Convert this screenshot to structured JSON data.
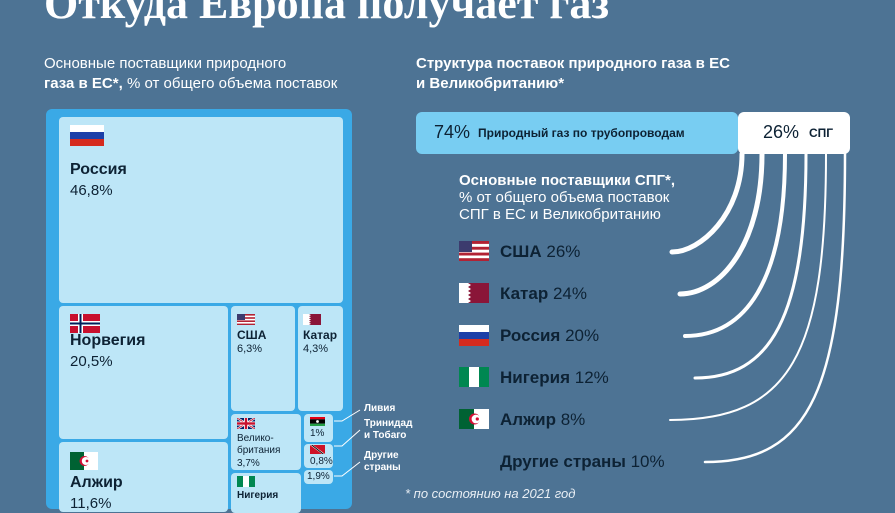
{
  "title": "Откуда Европа получает газ",
  "left_subtitle": {
    "line1": "Основные поставщики природного",
    "line2_bold": "газа в ЕС*,",
    "line2_rest": " % от общего объема поставок"
  },
  "right_subtitle": {
    "line1": "Структура поставок природного газа в ЕС",
    "line2": "и Великобританию*"
  },
  "lng_subtitle": {
    "line1": "Основные поставщики СПГ*,",
    "line2": "% от общего объема поставок",
    "line3": "СПГ в ЕС и Великобританию"
  },
  "footnote": "* по состоянию на 2021 год",
  "chart_data": [
    {
      "type": "treemap",
      "title": "Основные поставщики природного газа в ЕС*, % от общего объема поставок",
      "items": [
        {
          "name": "Россия",
          "value": 46.8,
          "label": "46,8%"
        },
        {
          "name": "Норвегия",
          "value": 20.5,
          "label": "20,5%"
        },
        {
          "name": "Алжир",
          "value": 11.6,
          "label": "11,6%"
        },
        {
          "name": "США",
          "value": 6.3,
          "label": "6,3%"
        },
        {
          "name": "Катар",
          "value": 4.3,
          "label": "4,3%"
        },
        {
          "name": "Велико-британия",
          "label_line1": "Велико-",
          "label_line2": "британия",
          "value": 3.7,
          "label": "3,7%"
        },
        {
          "name": "Нигерия",
          "value": null,
          "label": ""
        },
        {
          "name": "Ливия",
          "value": 1.0,
          "label": "1%"
        },
        {
          "name": "Тринидад и Тобаго",
          "label_line1": "Тринидад",
          "label_line2": "и Тобаго",
          "value": 0.8,
          "label": "0,8%"
        },
        {
          "name": "Другие страны",
          "label_line1": "Другие",
          "label_line2": "страны",
          "value": 1.9,
          "label": "1,9%"
        }
      ]
    },
    {
      "type": "bar",
      "title": "Структура поставок природного газа в ЕС и Великобританию*",
      "categories": [
        "Природный газ по трубопроводам",
        "СПГ"
      ],
      "values": [
        74,
        26
      ],
      "labels": [
        "74%",
        "26%"
      ]
    },
    {
      "type": "bar",
      "title": "Основные поставщики СПГ*, % от общего объема поставок СПГ в ЕС и Великобританию",
      "categories": [
        "США",
        "Катар",
        "Россия",
        "Нигерия",
        "Алжир",
        "Другие страны"
      ],
      "values": [
        26,
        24,
        20,
        12,
        8,
        10
      ],
      "labels": [
        "26%",
        "24%",
        "20%",
        "12%",
        "8%",
        "10%"
      ]
    }
  ]
}
